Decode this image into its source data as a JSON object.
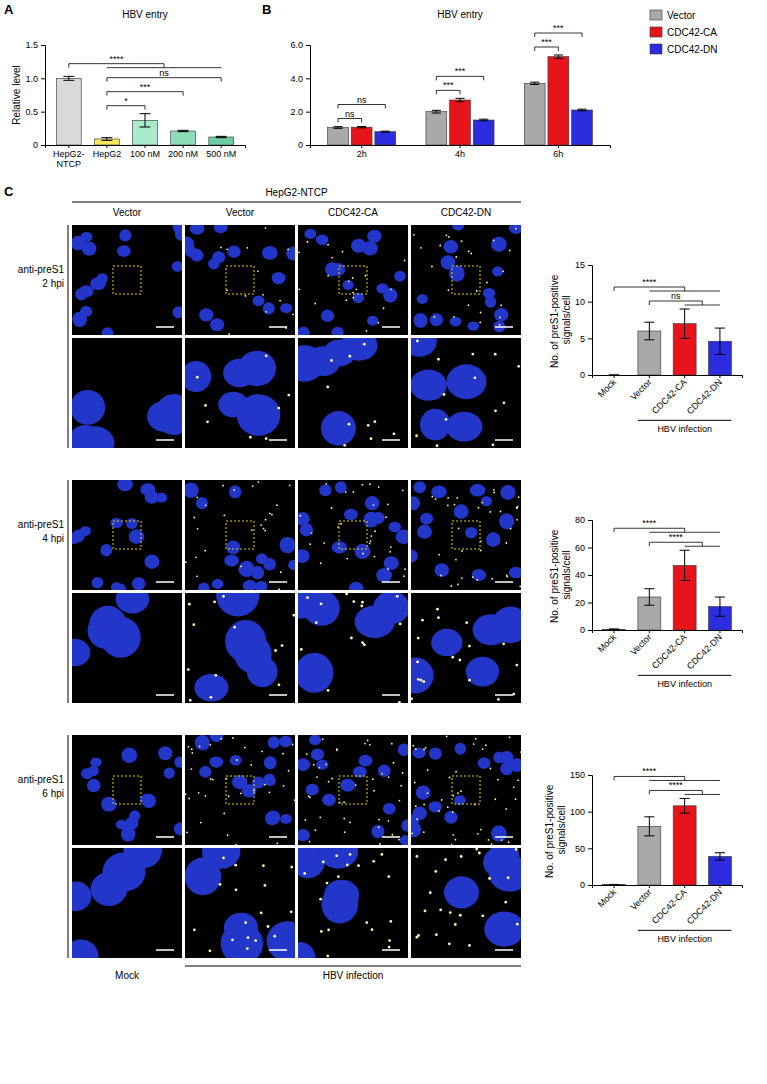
{
  "chart_data": [
    {
      "type": "bar",
      "panel": "A",
      "title": "HBV entry",
      "ylabel": "Relative level",
      "categories": [
        "HepG2-NTCP",
        "HepG2",
        "100 nM",
        "200 nM",
        "500 nM"
      ],
      "values": [
        1.0,
        0.09,
        0.37,
        0.21,
        0.12
      ],
      "errors": [
        0.03,
        0.02,
        0.1,
        0.01,
        0.01
      ],
      "colors": [
        "#d9d9d9",
        "#f7e65a",
        "#a8ebcd",
        "#8cdcba",
        "#6fcca3"
      ],
      "ylim": [
        0,
        1.5
      ],
      "yticks": [
        0,
        0.5,
        {
          "value": 1,
          "label": "1.0"
        },
        1.5
      ],
      "significance": [
        {
          "label": "*",
          "from": 1,
          "to": [
            2,
            2
          ]
        },
        {
          "label": "***",
          "from": 1,
          "to": [
            3,
            3
          ]
        },
        {
          "label": "ns",
          "from": 1,
          "to": [
            4,
            4
          ]
        },
        {
          "label": "****",
          "from": 0,
          "to": [
            1,
            4
          ]
        }
      ]
    },
    {
      "type": "bar",
      "panel": "B",
      "title": "HBV entry",
      "categories": [
        "2h",
        "4h",
        "6h"
      ],
      "series": [
        {
          "name": "Vector",
          "color": "#a9a9a9",
          "values": [
            1.05,
            2.0,
            3.7
          ],
          "errors": [
            0.05,
            0.08,
            0.07
          ]
        },
        {
          "name": "CDC42-CA",
          "color": "#e8141b",
          "values": [
            1.07,
            2.7,
            5.3
          ],
          "errors": [
            0.04,
            0.1,
            0.1
          ]
        },
        {
          "name": "CDC42-DN",
          "color": "#2d2de0",
          "values": [
            0.8,
            1.5,
            2.1
          ],
          "errors": [
            0.03,
            0.05,
            0.05
          ]
        }
      ],
      "ylim": [
        0,
        6
      ],
      "yticks": [
        0,
        {
          "value": 2,
          "label": "2.0"
        },
        {
          "value": 4,
          "label": "4.0"
        },
        {
          "value": 6,
          "label": "6.0"
        }
      ],
      "legend": "right",
      "significance": [
        {
          "label": "ns",
          "category": 0,
          "from": 0,
          "to": [
            1,
            1
          ]
        },
        {
          "label": "ns",
          "category": 0,
          "from": 0,
          "to": [
            2,
            2
          ]
        },
        {
          "label": "***",
          "category": 1,
          "from": 0,
          "to": [
            1,
            1
          ]
        },
        {
          "label": "***",
          "category": 1,
          "from": 0,
          "to": [
            2,
            2
          ]
        },
        {
          "label": "***",
          "category": 2,
          "from": 0,
          "to": [
            1,
            1
          ]
        },
        {
          "label": "***",
          "category": 2,
          "from": 0,
          "to": [
            2,
            2
          ]
        }
      ]
    },
    {
      "type": "bar",
      "ylabel": "No. of preS1-positive signals/cell",
      "categories": [
        "Mock",
        "Vector",
        "CDC42-CA",
        "CDC42-DN"
      ],
      "values": [
        0,
        6,
        7,
        4.6
      ],
      "errors": [
        0,
        1.2,
        2,
        1.8
      ],
      "colors": [
        "#a9a9a9",
        "#a9a9a9",
        "#e8141b",
        "#2d2de0"
      ],
      "ylim": [
        0,
        15
      ],
      "yticks": [
        0,
        5,
        10,
        15
      ],
      "x_group": {
        "label": "HBV infection",
        "from": 1,
        "to": 3
      },
      "significance": [
        {
          "label": "ns",
          "from": 1,
          "to": [
            2,
            3
          ]
        },
        {
          "label": "****",
          "from": 0,
          "to": [
            1,
            3
          ]
        }
      ]
    },
    {
      "type": "bar",
      "ylabel": "No. of preS1-positive signals/cell",
      "categories": [
        "Mock",
        "Vector",
        "CDC42-CA",
        "CDC42-DN"
      ],
      "values": [
        0.5,
        24,
        47,
        17
      ],
      "errors": [
        0.3,
        6,
        11,
        7
      ],
      "colors": [
        "#a9a9a9",
        "#a9a9a9",
        "#e8141b",
        "#2d2de0"
      ],
      "ylim": [
        0,
        80
      ],
      "yticks": [
        0,
        20,
        40,
        60,
        80
      ],
      "x_group": {
        "label": "HBV infection",
        "from": 1,
        "to": 3
      },
      "significance": [
        {
          "label": "****",
          "from": 1,
          "to": [
            2,
            3
          ]
        },
        {
          "label": "****",
          "from": 0,
          "to": [
            1,
            3
          ]
        }
      ]
    },
    {
      "type": "bar",
      "ylabel": "No. of preS1-positive signals/cell",
      "categories": [
        "Mock",
        "Vector",
        "CDC42-CA",
        "CDC42-DN"
      ],
      "values": [
        0.5,
        80,
        108,
        39
      ],
      "errors": [
        0.3,
        13,
        10,
        5
      ],
      "colors": [
        "#a9a9a9",
        "#a9a9a9",
        "#e8141b",
        "#2d2de0"
      ],
      "ylim": [
        0,
        150
      ],
      "yticks": [
        0,
        50,
        100,
        150
      ],
      "x_group": {
        "label": "HBV infection",
        "from": 1,
        "to": 3
      },
      "significance": [
        {
          "label": "****",
          "from": 1,
          "to": [
            2,
            3
          ]
        },
        {
          "label": "****",
          "from": 0,
          "to": [
            1,
            3
          ]
        }
      ]
    }
  ],
  "images": {
    "panel": "C",
    "header": "HepG2-NTCP",
    "columns": [
      "Vector",
      "Vector",
      "CDC42-CA",
      "CDC42-DN"
    ],
    "rows": [
      {
        "stain": "anti-preS1",
        "time": "2 hpi"
      },
      {
        "stain": "anti-preS1",
        "time": "4 hpi"
      },
      {
        "stain": "anti-preS1",
        "time": "6 hpi"
      }
    ],
    "footer": {
      "mock": "Mock",
      "infected": "HBV infection"
    }
  }
}
